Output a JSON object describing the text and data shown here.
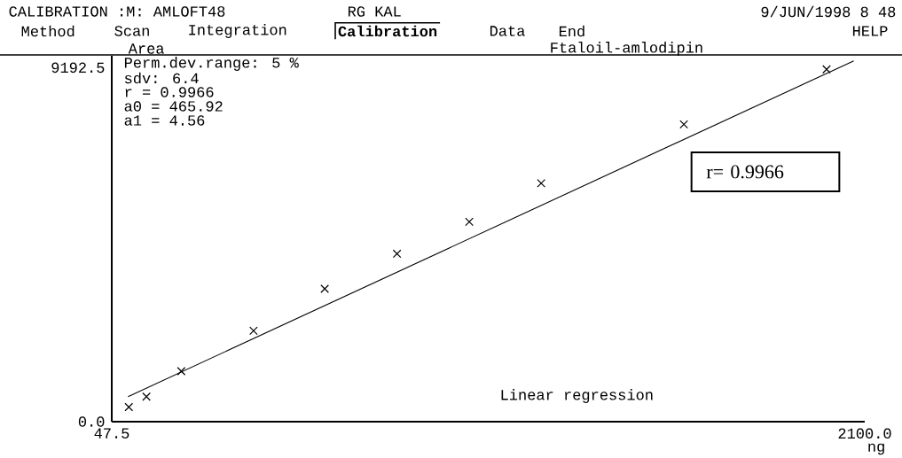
{
  "chart_data": {
    "type": "scatter",
    "title": "Ftaloil-amlodipin",
    "ylabel": "Area",
    "xlabel": "ng",
    "xlim": [
      47.5,
      2100
    ],
    "xticks": [
      {
        "value": 47.5,
        "label": "47.5"
      },
      {
        "value": 2100,
        "label": "2100.0"
      }
    ],
    "ylim": [
      0,
      9500
    ],
    "yticks": [
      {
        "value": 0,
        "label": "0.0"
      },
      {
        "value": 9192.5,
        "label": "9192.5"
      }
    ],
    "series": [
      {
        "marker": "cross",
        "color": "#000000",
        "x": [
          94,
          142,
          237,
          434,
          628,
          825,
          1022,
          1218,
          1607,
          1996
        ],
        "values": [
          380,
          650,
          1310,
          2360,
          3450,
          4360,
          5190,
          6190,
          7720,
          9150
        ]
      },
      {
        "type": "line",
        "marker": "none",
        "color": "#000000",
        "x": [
          92,
          2070
        ],
        "values": [
          650,
          9370
        ]
      }
    ],
    "annotations": [
      "CALIBRATION :M: AMLOFT48",
      "RG KAL",
      "9/JUN/1998  8 48",
      "Method",
      "Scan",
      "Integration",
      "Calibration",
      "Data",
      "End",
      "HELP",
      "Perm.dev.range: 5 %",
      "sdv: 6.4",
      "r = 0.9966",
      "a0 = 465.92",
      "a1 = 4.56",
      "Linear regression",
      "r= 0.9966"
    ]
  }
}
